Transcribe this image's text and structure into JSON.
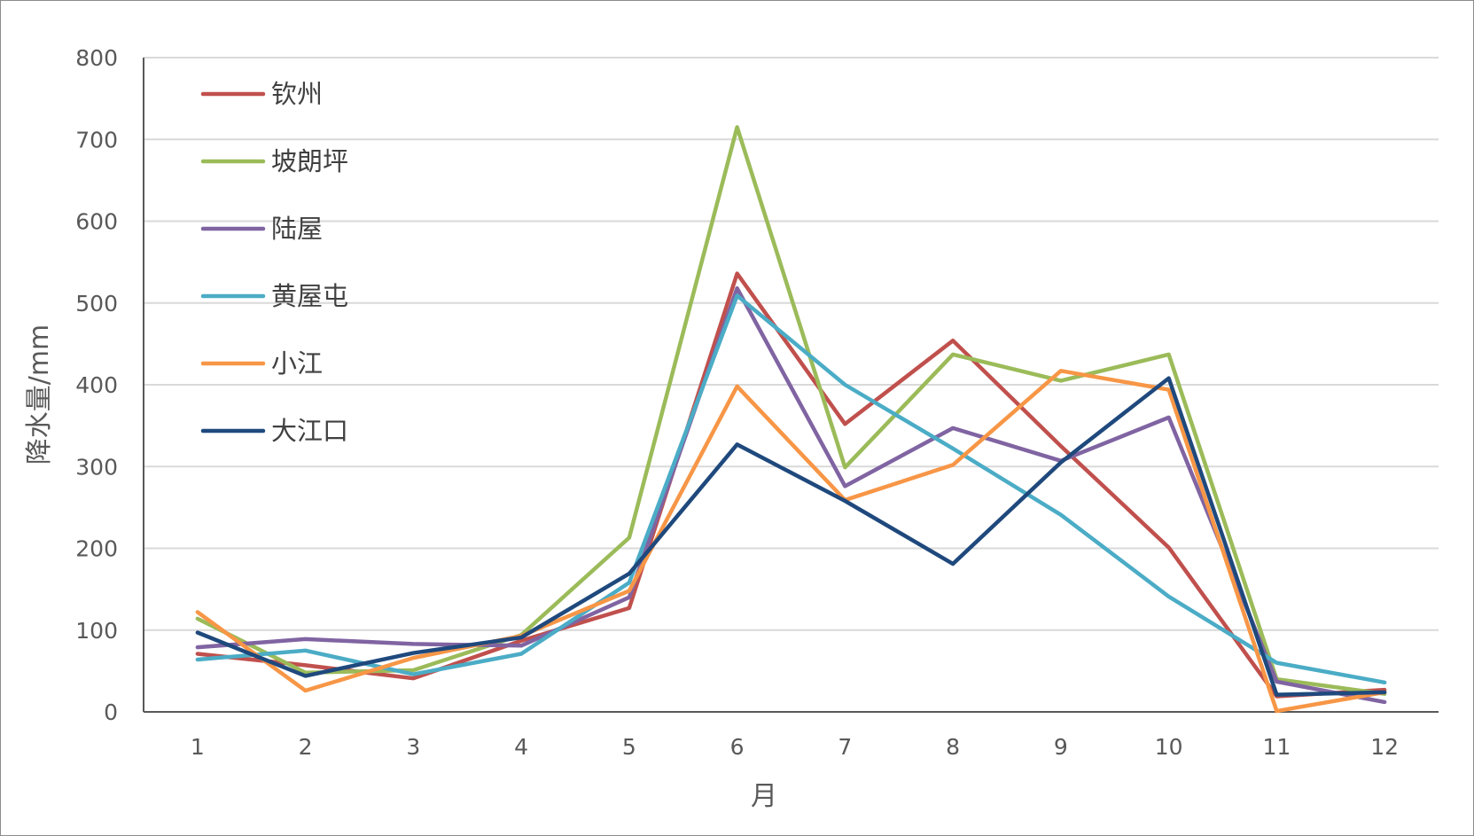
{
  "chart_data": {
    "type": "line",
    "title": "",
    "xlabel": "月",
    "ylabel": "降水量/mm",
    "categories": [
      "1",
      "2",
      "3",
      "4",
      "5",
      "6",
      "7",
      "8",
      "9",
      "10",
      "11",
      "12"
    ],
    "ylim": [
      0,
      800
    ],
    "yticks": [
      "0",
      "100",
      "200",
      "300",
      "400",
      "500",
      "600",
      "700",
      "800"
    ],
    "grid": true,
    "legend_position": "top-left inside",
    "series": [
      {
        "name": "钦州",
        "color": "#c0504d",
        "values": [
          71,
          57,
          41,
          87,
          127,
          536,
          352,
          454,
          325,
          201,
          19,
          27
        ]
      },
      {
        "name": "坡朗坪",
        "color": "#9bbb59",
        "values": [
          114,
          48,
          51,
          94,
          213,
          715,
          299,
          437,
          405,
          437,
          40,
          22
        ]
      },
      {
        "name": "陆屋",
        "color": "#8064a2",
        "values": [
          79,
          89,
          83,
          81,
          140,
          518,
          276,
          347,
          307,
          360,
          37,
          12
        ]
      },
      {
        "name": "黄屋屯",
        "color": "#4bacc6",
        "values": [
          64,
          75,
          46,
          71,
          158,
          509,
          400,
          322,
          241,
          141,
          60,
          36
        ]
      },
      {
        "name": "小江",
        "color": "#f79646",
        "values": [
          122,
          26,
          66,
          93,
          148,
          398,
          259,
          302,
          417,
          394,
          1,
          24
        ]
      },
      {
        "name": "大江口",
        "color": "#1f497d",
        "values": [
          97,
          44,
          72,
          91,
          169,
          327,
          258,
          181,
          305,
          408,
          21,
          24
        ]
      }
    ]
  }
}
